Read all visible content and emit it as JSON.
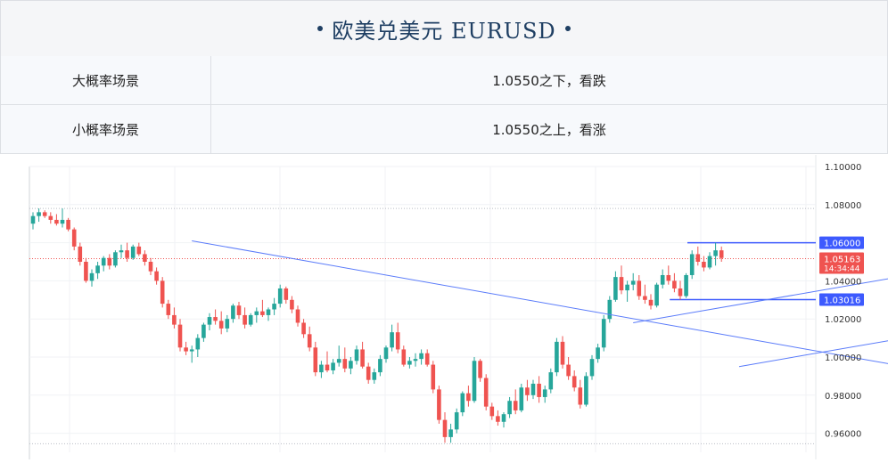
{
  "header": {
    "title": "欧美兑美元 EURUSD"
  },
  "scenarios": [
    {
      "label": "大概率场景",
      "value": "1.0550之下，看跌"
    },
    {
      "label": "小概率场景",
      "value": "1.0550之上，看涨"
    }
  ],
  "chart_data": {
    "type": "candlestick",
    "symbol": "EURUSD",
    "ylim": [
      0.95,
      1.1
    ],
    "y_ticks": [
      "1.10000",
      "1.08000",
      "1.06000",
      "1.04000",
      "1.02000",
      "1.00000",
      "0.98000",
      "0.96000"
    ],
    "y_tick_values": [
      1.1,
      1.08,
      1.06,
      1.04,
      1.02,
      1.0,
      0.98,
      0.96
    ],
    "grid": true,
    "current_price": {
      "value": 1.05163,
      "label": "1.05163",
      "time": "14:34:44"
    },
    "level_labels": [
      {
        "value": 1.06,
        "label": "1.06000",
        "color": "#3d5afe"
      },
      {
        "value": 1.03016,
        "label": "1.03016",
        "color": "#3d5afe"
      }
    ],
    "dotted_levels": [
      1.078,
      0.9545
    ],
    "colors": {
      "up": "#26a69a",
      "down": "#ef5350",
      "trendline": "#5b7cfa",
      "price": "#ef5350"
    },
    "trendlines": [
      {
        "from": [
          27,
          1.061
        ],
        "to": [
          150,
          0.994
        ]
      },
      {
        "from": [
          102,
          1.018
        ],
        "to": [
          179,
          1.059
        ]
      },
      {
        "from": [
          120,
          0.995
        ],
        "to": [
          178,
          1.026
        ]
      }
    ],
    "candles": [
      [
        1.07,
        1.076,
        1.067,
        1.074
      ],
      [
        1.074,
        1.078,
        1.071,
        1.076
      ],
      [
        1.076,
        1.077,
        1.073,
        1.074
      ],
      [
        1.074,
        1.076,
        1.07,
        1.072
      ],
      [
        1.072,
        1.075,
        1.069,
        1.07
      ],
      [
        1.07,
        1.078,
        1.068,
        1.072
      ],
      [
        1.072,
        1.073,
        1.066,
        1.067
      ],
      [
        1.067,
        1.068,
        1.056,
        1.058
      ],
      [
        1.058,
        1.06,
        1.048,
        1.05
      ],
      [
        1.05,
        1.052,
        1.039,
        1.04
      ],
      [
        1.04,
        1.046,
        1.037,
        1.044
      ],
      [
        1.044,
        1.05,
        1.041,
        1.048
      ],
      [
        1.048,
        1.053,
        1.045,
        1.052
      ],
      [
        1.052,
        1.054,
        1.046,
        1.048
      ],
      [
        1.048,
        1.056,
        1.047,
        1.055
      ],
      [
        1.055,
        1.059,
        1.052,
        1.056
      ],
      [
        1.056,
        1.06,
        1.05,
        1.052
      ],
      [
        1.052,
        1.059,
        1.051,
        1.058
      ],
      [
        1.058,
        1.06,
        1.053,
        1.054
      ],
      [
        1.054,
        1.056,
        1.048,
        1.05
      ],
      [
        1.05,
        1.052,
        1.043,
        1.045
      ],
      [
        1.045,
        1.047,
        1.038,
        1.04
      ],
      [
        1.04,
        1.042,
        1.026,
        1.028
      ],
      [
        1.028,
        1.03,
        1.02,
        1.022
      ],
      [
        1.022,
        1.026,
        1.015,
        1.017
      ],
      [
        1.017,
        1.02,
        1.003,
        1.005
      ],
      [
        1.005,
        1.008,
        1.001,
        1.003
      ],
      [
        1.003,
        1.006,
        0.997,
        1.004
      ],
      [
        1.004,
        1.012,
        1.0,
        1.01
      ],
      [
        1.01,
        1.018,
        1.008,
        1.017
      ],
      [
        1.017,
        1.023,
        1.014,
        1.021
      ],
      [
        1.021,
        1.025,
        1.017,
        1.019
      ],
      [
        1.019,
        1.024,
        1.012,
        1.015
      ],
      [
        1.015,
        1.022,
        1.013,
        1.02
      ],
      [
        1.02,
        1.028,
        1.018,
        1.027
      ],
      [
        1.027,
        1.029,
        1.02,
        1.022
      ],
      [
        1.022,
        1.026,
        1.015,
        1.017
      ],
      [
        1.017,
        1.023,
        1.016,
        1.022
      ],
      [
        1.022,
        1.026,
        1.018,
        1.024
      ],
      [
        1.024,
        1.03,
        1.021,
        1.022
      ],
      [
        1.022,
        1.026,
        1.019,
        1.025
      ],
      [
        1.025,
        1.031,
        1.022,
        1.028
      ],
      [
        1.028,
        1.038,
        1.026,
        1.036
      ],
      [
        1.036,
        1.037,
        1.028,
        1.03
      ],
      [
        1.03,
        1.032,
        1.023,
        1.025
      ],
      [
        1.025,
        1.027,
        1.016,
        1.018
      ],
      [
        1.018,
        1.02,
        1.01,
        1.012
      ],
      [
        1.012,
        1.016,
        1.003,
        1.005
      ],
      [
        1.005,
        1.008,
        0.99,
        0.992
      ],
      [
        0.992,
        0.998,
        0.989,
        0.996
      ],
      [
        0.996,
        1.003,
        0.992,
        0.993
      ],
      [
        0.993,
        0.999,
        0.991,
        0.997
      ],
      [
        0.997,
        1.006,
        0.995,
        0.999
      ],
      [
        0.999,
        1.005,
        0.992,
        0.994
      ],
      [
        0.994,
        1.0,
        0.991,
        0.998
      ],
      [
        0.998,
        1.006,
        0.996,
        1.004
      ],
      [
        1.004,
        1.008,
        0.994,
        0.995
      ],
      [
        0.995,
        0.997,
        0.986,
        0.988
      ],
      [
        0.988,
        0.994,
        0.986,
        0.992
      ],
      [
        0.992,
        1.001,
        0.99,
        0.999
      ],
      [
        0.999,
        1.006,
        0.997,
        1.005
      ],
      [
        1.005,
        1.017,
        1.003,
        1.013
      ],
      [
        1.013,
        1.018,
        1.002,
        1.004
      ],
      [
        1.004,
        1.006,
        0.995,
        0.996
      ],
      [
        0.996,
        1.0,
        0.994,
        0.998
      ],
      [
        0.998,
        1.002,
        0.995,
        0.999
      ],
      [
        0.999,
        1.004,
        0.996,
        1.002
      ],
      [
        1.002,
        1.004,
        0.995,
        0.996
      ],
      [
        0.996,
        0.998,
        0.981,
        0.983
      ],
      [
        0.983,
        0.985,
        0.965,
        0.967
      ],
      [
        0.967,
        0.971,
        0.955,
        0.958
      ],
      [
        0.958,
        0.965,
        0.955,
        0.962
      ],
      [
        0.962,
        0.973,
        0.96,
        0.971
      ],
      [
        0.971,
        0.982,
        0.969,
        0.981
      ],
      [
        0.981,
        0.985,
        0.974,
        0.977
      ],
      [
        0.977,
        1.0,
        0.976,
        0.998
      ],
      [
        0.998,
        0.999,
        0.987,
        0.989
      ],
      [
        0.989,
        0.991,
        0.972,
        0.974
      ],
      [
        0.974,
        0.976,
        0.967,
        0.969
      ],
      [
        0.969,
        0.972,
        0.964,
        0.966
      ],
      [
        0.966,
        0.971,
        0.963,
        0.97
      ],
      [
        0.97,
        0.979,
        0.968,
        0.977
      ],
      [
        0.977,
        0.983,
        0.97,
        0.972
      ],
      [
        0.972,
        0.986,
        0.971,
        0.984
      ],
      [
        0.984,
        0.988,
        0.977,
        0.98
      ],
      [
        0.98,
        0.988,
        0.978,
        0.986
      ],
      [
        0.986,
        0.99,
        0.976,
        0.979
      ],
      [
        0.979,
        0.985,
        0.976,
        0.983
      ],
      [
        0.983,
        0.994,
        0.981,
        0.992
      ],
      [
        0.992,
        1.01,
        0.99,
        1.008
      ],
      [
        1.008,
        1.011,
        0.994,
        0.996
      ],
      [
        0.996,
        1.0,
        0.988,
        0.99
      ],
      [
        0.99,
        0.993,
        0.982,
        0.984
      ],
      [
        0.984,
        0.988,
        0.973,
        0.975
      ],
      [
        0.975,
        0.992,
        0.974,
        0.99
      ],
      [
        0.99,
        1.001,
        0.988,
        0.999
      ],
      [
        0.999,
        1.007,
        0.997,
        1.005
      ],
      [
        1.005,
        1.022,
        1.003,
        1.02
      ],
      [
        1.02,
        1.032,
        1.018,
        1.03
      ],
      [
        1.03,
        1.045,
        1.029,
        1.042
      ],
      [
        1.042,
        1.048,
        1.033,
        1.035
      ],
      [
        1.035,
        1.04,
        1.029,
        1.038
      ],
      [
        1.038,
        1.044,
        1.035,
        1.04
      ],
      [
        1.04,
        1.043,
        1.03,
        1.032
      ],
      [
        1.032,
        1.038,
        1.028,
        1.03
      ],
      [
        1.03,
        1.033,
        1.025,
        1.027
      ],
      [
        1.027,
        1.039,
        1.026,
        1.038
      ],
      [
        1.038,
        1.046,
        1.036,
        1.043
      ],
      [
        1.043,
        1.048,
        1.038,
        1.04
      ],
      [
        1.04,
        1.044,
        1.034,
        1.036
      ],
      [
        1.036,
        1.04,
        1.03,
        1.032
      ],
      [
        1.032,
        1.044,
        1.031,
        1.043
      ],
      [
        1.043,
        1.056,
        1.041,
        1.054
      ],
      [
        1.054,
        1.058,
        1.048,
        1.05
      ],
      [
        1.05,
        1.053,
        1.045,
        1.047
      ],
      [
        1.047,
        1.055,
        1.046,
        1.053
      ],
      [
        1.053,
        1.06,
        1.048,
        1.056
      ],
      [
        1.056,
        1.058,
        1.05,
        1.052
      ]
    ]
  }
}
